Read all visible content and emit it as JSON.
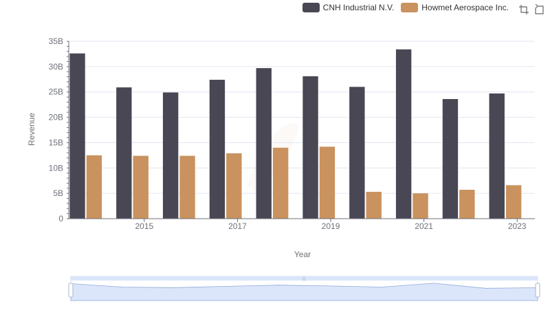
{
  "chart_data": {
    "type": "bar",
    "title": "",
    "xlabel": "Year",
    "ylabel": "Revenue",
    "x": [
      2014,
      2015,
      2016,
      2017,
      2018,
      2019,
      2020,
      2021,
      2022,
      2023
    ],
    "x_tick_labels_shown": [
      "2015",
      "2017",
      "2019",
      "2021",
      "2023"
    ],
    "y_ticks": [
      0,
      5,
      10,
      15,
      20,
      25,
      30,
      35
    ],
    "y_tick_labels": [
      "0",
      "5B",
      "10B",
      "15B",
      "20B",
      "25B",
      "30B",
      "35B"
    ],
    "ylim": [
      0,
      35
    ],
    "y_unit": "B",
    "grid": true,
    "legend_position": "top-right",
    "series": [
      {
        "name": "CNH Industrial N.V.",
        "color": "#484753",
        "values": [
          32.6,
          25.9,
          24.9,
          27.4,
          29.7,
          28.1,
          26.0,
          33.4,
          23.6,
          24.7
        ]
      },
      {
        "name": "Howmet Aerospace Inc.",
        "color": "#c9925e",
        "values": [
          12.5,
          12.4,
          12.4,
          12.9,
          14.0,
          14.2,
          5.3,
          5.0,
          5.7,
          6.6
        ]
      }
    ]
  },
  "toolbox": {
    "zoom_icon": "zoom-icon",
    "reset_icon": "restore-icon"
  },
  "slider": {
    "fill_color": "#dbe6fb",
    "handle_color": "#a7b7cc"
  }
}
